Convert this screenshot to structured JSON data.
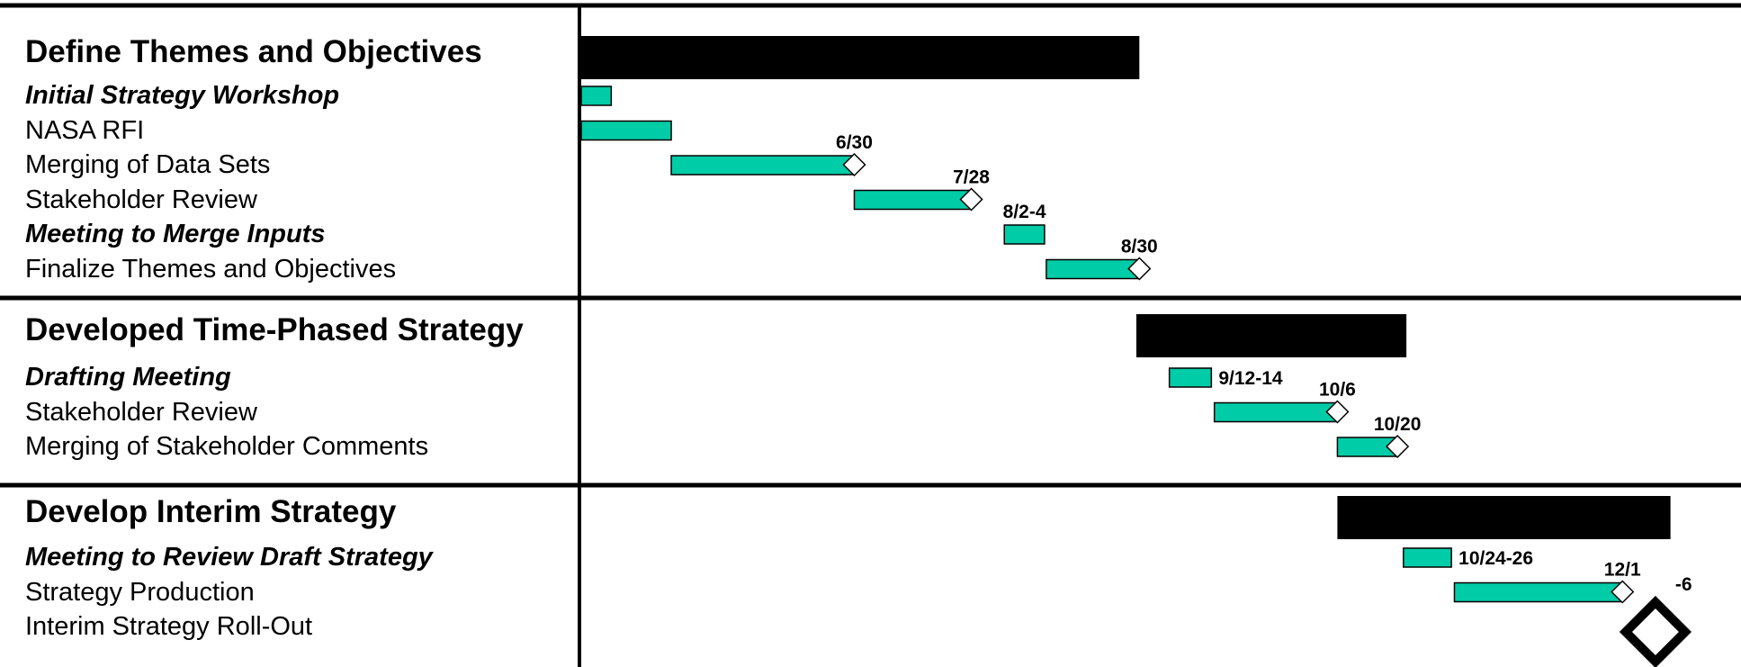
{
  "colors": {
    "summary": "#000000",
    "task": "#00cca7",
    "grid": "#000000"
  },
  "chart_data": {
    "type": "gantt",
    "groups": [
      {
        "title": "Define Themes and Objectives",
        "summary": {
          "start": 0,
          "end": 9.3
        },
        "tasks": [
          {
            "label": "Initial Strategy Workshop",
            "style": "meeting",
            "start": 0,
            "end": 0.5
          },
          {
            "label": "NASA RFI",
            "style": "normal",
            "start": 0,
            "end": 1.5
          },
          {
            "label": "Merging of Data Sets",
            "style": "normal",
            "start": 1.5,
            "end": 4.55,
            "milestone": "6/30"
          },
          {
            "label": "Stakeholder Review",
            "style": "normal",
            "start": 4.55,
            "end": 6.5,
            "milestone": "7/28"
          },
          {
            "label": "Meeting to Merge Inputs",
            "style": "meeting",
            "start": 7.05,
            "end": 7.72,
            "date_label": "8/2-4"
          },
          {
            "label": "Finalize Themes and Objectives",
            "style": "normal",
            "start": 7.75,
            "end": 9.3,
            "milestone": "8/30"
          }
        ]
      },
      {
        "title": "Developed Time-Phased Strategy",
        "summary": {
          "start": 9.25,
          "end": 13.75
        },
        "tasks": [
          {
            "label": "Drafting Meeting",
            "style": "meeting",
            "start": 9.8,
            "end": 10.5,
            "date_label": "9/12-14"
          },
          {
            "label": "Stakeholder Review",
            "style": "normal",
            "start": 10.55,
            "end": 12.6,
            "milestone": "10/6"
          },
          {
            "label": "Merging of Stakeholder Comments",
            "style": "normal",
            "start": 12.6,
            "end": 13.6,
            "milestone": "10/20"
          }
        ]
      },
      {
        "title": "Develop Interim Strategy",
        "summary": {
          "start": 12.6,
          "end": 18.15
        },
        "tasks": [
          {
            "label": "Meeting to Review Draft Strategy",
            "style": "meeting",
            "start": 13.7,
            "end": 14.5,
            "date_label": "10/24-26"
          },
          {
            "label": "Strategy Production",
            "style": "normal",
            "start": 14.55,
            "end": 17.35,
            "milestone": "12/1"
          },
          {
            "label": "Interim Strategy Roll-Out",
            "style": "normal",
            "big_milestone_x": 17.9,
            "big_milestone_label": "-6"
          }
        ]
      }
    ]
  }
}
